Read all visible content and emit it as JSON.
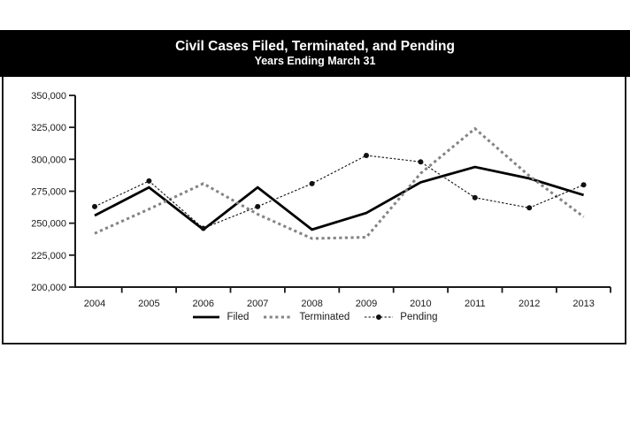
{
  "header": {
    "title": "Civil Cases Filed, Terminated, and Pending",
    "subtitle": "Years Ending March 31"
  },
  "legend": {
    "items": [
      {
        "label": "Filed"
      },
      {
        "label": "Terminated"
      },
      {
        "label": "Pending"
      }
    ]
  },
  "chart_data": {
    "type": "line",
    "title": "Civil Cases Filed, Terminated, and Pending",
    "subtitle": "Years Ending March 31",
    "categories": [
      2004,
      2005,
      2006,
      2007,
      2008,
      2009,
      2010,
      2011,
      2012,
      2013
    ],
    "series": [
      {
        "name": "Filed",
        "style": "solid",
        "color": "#000000",
        "marker": "none",
        "values": [
          256000,
          278000,
          245000,
          278000,
          245000,
          258000,
          282000,
          294000,
          285000,
          272000
        ]
      },
      {
        "name": "Terminated",
        "style": "dashed",
        "color": "#848484",
        "marker": "none",
        "values": [
          242000,
          261000,
          281000,
          257000,
          238000,
          239000,
          289000,
          324000,
          287000,
          255000
        ]
      },
      {
        "name": "Pending",
        "style": "dotted",
        "color": "#111111",
        "marker": "circle",
        "values": [
          263000,
          283000,
          246000,
          263000,
          281000,
          303000,
          298000,
          270000,
          262000,
          280000
        ]
      }
    ],
    "xlabel": "",
    "ylabel": "",
    "ylim": [
      200000,
      350000
    ],
    "ytick_interval": 25000,
    "grid": false,
    "legend_position": "bottom",
    "axis_color": "#1a1a1a",
    "tick_label_color": "#1a1a1a"
  }
}
